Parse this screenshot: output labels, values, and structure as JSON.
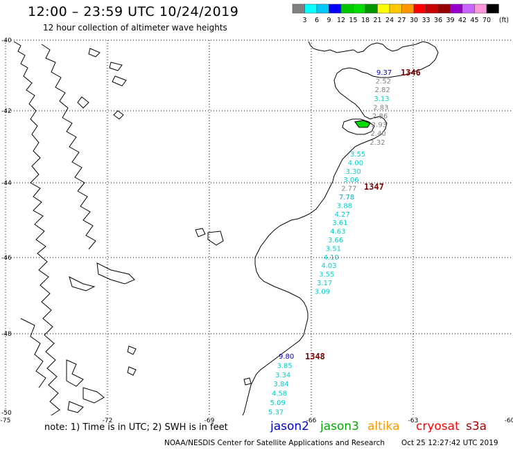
{
  "header": {
    "title": "12:00 – 23:59 UTC 10/24/2019",
    "subtitle": "12 hour collection of altimeter wave heights"
  },
  "colorbar": {
    "unit": "(ft)",
    "ticks": [
      "3",
      "6",
      "9",
      "12",
      "15",
      "18",
      "21",
      "24",
      "27",
      "30",
      "33",
      "36",
      "39",
      "42",
      "45",
      "70"
    ],
    "colors": [
      "#808080",
      "#00ffff",
      "#00c8ff",
      "#0000ff",
      "#00c800",
      "#00dc00",
      "#009600",
      "#ffff00",
      "#ffc800",
      "#ff9600",
      "#ff0000",
      "#c80000",
      "#960000",
      "#9600c8",
      "#c864ff",
      "#ff96dc",
      "#000000"
    ]
  },
  "map": {
    "lat_labels": [
      "-40",
      "-42",
      "-44",
      "-46",
      "-48",
      "-50"
    ],
    "lon_labels": [
      "-75",
      "-72",
      "-69",
      "-66",
      "-63",
      "-60"
    ],
    "passes": [
      {
        "label": "1346",
        "color": "#7a0000"
      },
      {
        "label": "1347",
        "color": "#7a0000"
      },
      {
        "label": "1348",
        "color": "#7a0000"
      }
    ],
    "track1346": [
      {
        "v": "9.37",
        "c": "#0000cc"
      },
      {
        "v": "2.52",
        "c": "#808080"
      },
      {
        "v": "2.82",
        "c": "#808080"
      },
      {
        "v": "3.13",
        "c": "#00cccc"
      },
      {
        "v": "2.83",
        "c": "#808080"
      },
      {
        "v": "2.86",
        "c": "#808080"
      },
      {
        "v": "2.93",
        "c": "#808080"
      },
      {
        "v": "2.40",
        "c": "#808080"
      },
      {
        "v": "2.32",
        "c": "#808080"
      }
    ],
    "track1347": [
      {
        "v": "3.55",
        "c": "#00cccc"
      },
      {
        "v": "4.00",
        "c": "#00cccc"
      },
      {
        "v": "3.30",
        "c": "#00cccc"
      },
      {
        "v": "3.06",
        "c": "#00cccc"
      },
      {
        "v": "2.77",
        "c": "#808080"
      },
      {
        "v": "7.78",
        "c": "#00aacc"
      },
      {
        "v": "3.88",
        "c": "#00cccc"
      },
      {
        "v": "4.27",
        "c": "#00cccc"
      },
      {
        "v": "3.61",
        "c": "#00cccc"
      },
      {
        "v": "4.63",
        "c": "#00cccc"
      },
      {
        "v": "3.66",
        "c": "#00cccc"
      },
      {
        "v": "3.51",
        "c": "#00cccc"
      },
      {
        "v": "4.10",
        "c": "#00cccc"
      },
      {
        "v": "4.03",
        "c": "#00cccc"
      },
      {
        "v": "3.55",
        "c": "#00cccc"
      },
      {
        "v": "3.17",
        "c": "#00cccc"
      },
      {
        "v": "3.09",
        "c": "#00cccc"
      }
    ],
    "track1348": [
      {
        "v": "9.80",
        "c": "#0000cc"
      },
      {
        "v": "3.85",
        "c": "#00cccc"
      },
      {
        "v": "3.34",
        "c": "#00cccc"
      },
      {
        "v": "3.84",
        "c": "#00cccc"
      },
      {
        "v": "4.58",
        "c": "#00cccc"
      },
      {
        "v": "5.09",
        "c": "#00cccc"
      },
      {
        "v": "5.37",
        "c": "#00cccc"
      }
    ]
  },
  "footer": {
    "note": "note: 1) Time is in UTC; 2) SWH is in feet",
    "legend": [
      {
        "label": "jason2",
        "color": "#0000cc"
      },
      {
        "label": "jason3",
        "color": "#00aa00"
      },
      {
        "label": "altika",
        "color": "#ff9900"
      },
      {
        "label": "cryosat",
        "color": "#ff0000"
      },
      {
        "label": "s3a",
        "color": "#aa0000"
      }
    ],
    "credit": "NOAA/NESDIS Center for Satellite Applications and Research",
    "timestamp": "Oct 25 12:27:42 UTC 2019"
  }
}
